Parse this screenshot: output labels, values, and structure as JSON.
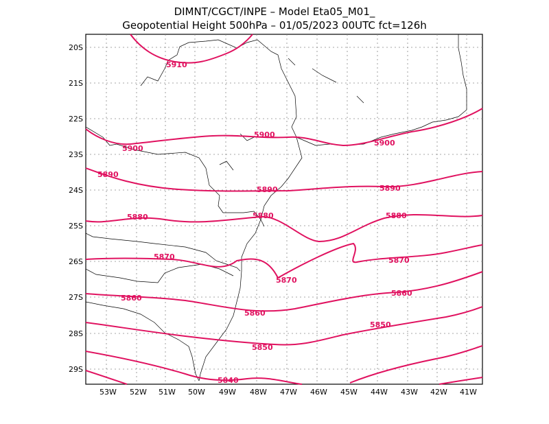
{
  "title": {
    "line1": "DIMNT/CGCT/INPE –  Model Eta05_M01_",
    "line2": "Geopotential Height 500hPa –  01/05/2023 00UTC fct=126h"
  },
  "axes": {
    "lon_ticks": [
      "53W",
      "52W",
      "51W",
      "50W",
      "49W",
      "48W",
      "47W",
      "46W",
      "45W",
      "44W",
      "43W",
      "42W",
      "41W"
    ],
    "lat_ticks": [
      "20S",
      "21S",
      "22S",
      "23S",
      "24S",
      "25S",
      "26S",
      "27S",
      "28S",
      "29S"
    ]
  },
  "contours": [
    {
      "value": 5910,
      "labels": [
        "5910"
      ]
    },
    {
      "value": 5900,
      "labels": [
        "5900",
        "5900",
        "5900"
      ]
    },
    {
      "value": 5890,
      "labels": [
        "5890",
        "5890",
        "5890"
      ]
    },
    {
      "value": 5880,
      "labels": [
        "5880",
        "5880",
        "5880"
      ]
    },
    {
      "value": 5870,
      "labels": [
        "5870",
        "5870",
        "5870"
      ]
    },
    {
      "value": 5860,
      "labels": [
        "5860",
        "5860",
        "5860"
      ]
    },
    {
      "value": 5850,
      "labels": [
        "5850",
        "5850"
      ]
    },
    {
      "value": 5840,
      "labels": [
        "5840"
      ]
    }
  ],
  "colors": {
    "contour": "#e0115f",
    "border": "#000000",
    "grid": "#888888"
  }
}
